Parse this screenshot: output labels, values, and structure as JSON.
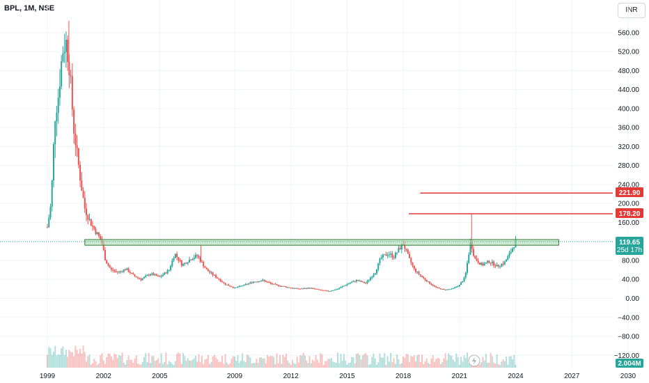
{
  "header": {
    "symbol_title": "BPL, 1M, NSE",
    "currency": "INR"
  },
  "price_tags": {
    "level_high": "221.90",
    "level_mid": "178.20",
    "last_price": "119.65",
    "countdown": "25d 17h",
    "volume": "2.004M"
  },
  "colors": {
    "up": "#26a69a",
    "down": "#ef5350",
    "level_line": "#e53935",
    "zone_fill": "#a5d6a7",
    "zone_border": "#2e7d32",
    "volume_tag": "#26a69a"
  },
  "icons": {
    "replay": "lightning-icon"
  },
  "chart_data": {
    "type": "candlestick",
    "title": "BPL, 1M, NSE",
    "y_unit": "INR",
    "y_ticks": [
      -120,
      -80,
      -40,
      0,
      40,
      80,
      120,
      160,
      200,
      240,
      280,
      320,
      360,
      400,
      440,
      480,
      520,
      560
    ],
    "y_tick_labels": [
      "−120.00",
      "−80.00",
      "−40.00",
      "0.00",
      "40.00",
      "80.00",
      "120.00",
      "160.00",
      "200.00",
      "240.00",
      "280.00",
      "320.00",
      "360.00",
      "400.00",
      "440.00",
      "480.00",
      "520.00",
      "560.00"
    ],
    "x_ticks": [
      1999,
      2002,
      2005,
      2009,
      2012,
      2015,
      2018,
      2021,
      2024,
      2027,
      2030
    ],
    "x_tick_labels": [
      "1999",
      "2002",
      "2005",
      "2009",
      "2012",
      "2015",
      "2018",
      "2021",
      "2024",
      "2027",
      "2030"
    ],
    "horizontal_levels": [
      {
        "price": 221.9,
        "from_year": 2018.9
      },
      {
        "price": 178.2,
        "from_year": 2018.3
      }
    ],
    "zone": {
      "from_year": 2001.0,
      "to_year": 2026.3,
      "low": 112,
      "high": 124
    },
    "last_price": 119.65,
    "price_path": [
      [
        1999.0,
        150
      ],
      [
        1999.2,
        200
      ],
      [
        1999.4,
        380
      ],
      [
        1999.6,
        430
      ],
      [
        1999.8,
        520
      ],
      [
        2000.0,
        540
      ],
      [
        2000.2,
        480
      ],
      [
        2000.4,
        360
      ],
      [
        2000.6,
        300
      ],
      [
        2000.8,
        240
      ],
      [
        2001.0,
        190
      ],
      [
        2001.3,
        160
      ],
      [
        2001.6,
        140
      ],
      [
        2001.9,
        120
      ],
      [
        2002.1,
        80
      ],
      [
        2002.4,
        60
      ],
      [
        2002.8,
        55
      ],
      [
        2003.2,
        62
      ],
      [
        2003.6,
        48
      ],
      [
        2004.0,
        40
      ],
      [
        2004.5,
        52
      ],
      [
        2005.0,
        45
      ],
      [
        2005.5,
        60
      ],
      [
        2005.8,
        95
      ],
      [
        2006.2,
        70
      ],
      [
        2006.7,
        85
      ],
      [
        2007.0,
        90
      ],
      [
        2007.5,
        60
      ],
      [
        2008.0,
        45
      ],
      [
        2008.5,
        30
      ],
      [
        2009.0,
        22
      ],
      [
        2009.5,
        28
      ],
      [
        2010.0,
        35
      ],
      [
        2010.5,
        38
      ],
      [
        2011.0,
        30
      ],
      [
        2011.5,
        26
      ],
      [
        2012.0,
        22
      ],
      [
        2012.5,
        20
      ],
      [
        2013.0,
        22
      ],
      [
        2013.5,
        18
      ],
      [
        2014.0,
        15
      ],
      [
        2014.5,
        20
      ],
      [
        2015.0,
        30
      ],
      [
        2015.5,
        38
      ],
      [
        2016.0,
        32
      ],
      [
        2016.5,
        55
      ],
      [
        2016.8,
        85
      ],
      [
        2017.2,
        95
      ],
      [
        2017.5,
        88
      ],
      [
        2017.8,
        105
      ],
      [
        2018.0,
        115
      ],
      [
        2018.3,
        85
      ],
      [
        2018.6,
        60
      ],
      [
        2019.0,
        45
      ],
      [
        2019.4,
        32
      ],
      [
        2019.8,
        22
      ],
      [
        2020.2,
        18
      ],
      [
        2020.6,
        20
      ],
      [
        2021.0,
        28
      ],
      [
        2021.3,
        45
      ],
      [
        2021.6,
        120
      ],
      [
        2021.8,
        85
      ],
      [
        2022.2,
        70
      ],
      [
        2022.6,
        78
      ],
      [
        2023.0,
        68
      ],
      [
        2023.4,
        75
      ],
      [
        2023.7,
        95
      ],
      [
        2024.0,
        119.65
      ]
    ]
  }
}
